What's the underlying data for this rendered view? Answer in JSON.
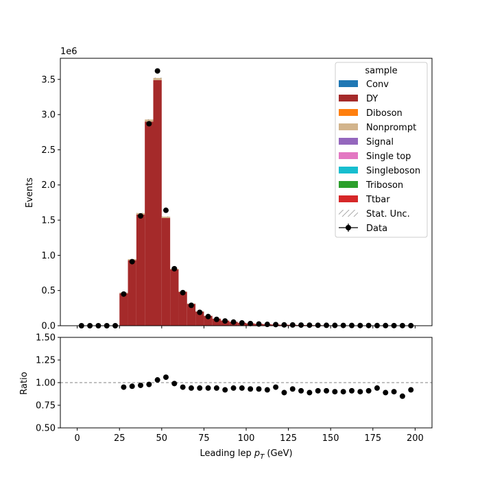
{
  "chart_data": {
    "type": "bar",
    "stacked": true,
    "main": {
      "ylabel": "Events",
      "offset_text": "1e6",
      "ylim": [
        0,
        3.8
      ],
      "yticks": [
        0.0,
        0.5,
        1.0,
        1.5,
        2.0,
        2.5,
        3.0,
        3.5
      ],
      "ytick_labels": [
        "0.0",
        "0.5",
        "1.0",
        "1.5",
        "2.0",
        "2.5",
        "3.0",
        "3.5"
      ]
    },
    "ratio": {
      "ylabel": "Ratio",
      "ylim": [
        0.5,
        1.5
      ],
      "yticks": [
        0.5,
        0.75,
        1.0,
        1.25,
        1.5
      ],
      "ytick_labels": [
        "0.50",
        "0.75",
        "1.00",
        "1.25",
        "1.50"
      ],
      "reference_line": 1.0,
      "values": [
        null,
        null,
        null,
        null,
        null,
        0.95,
        0.96,
        0.97,
        0.98,
        1.03,
        1.06,
        0.99,
        0.95,
        0.94,
        0.94,
        0.94,
        0.94,
        0.92,
        0.94,
        0.94,
        0.93,
        0.93,
        0.92,
        0.95,
        0.89,
        0.93,
        0.91,
        0.89,
        0.91,
        0.91,
        0.9,
        0.9,
        0.91,
        0.9,
        0.91,
        0.94,
        0.89,
        0.9,
        0.85,
        0.92
      ]
    },
    "xlabel": "Leading lep $p_T$ (GeV)",
    "xlabel_main": "Leading lep ",
    "xlabel_sub": "T",
    "xlabel_tail": " (GeV)",
    "xlabel_p": "p",
    "xlim": [
      -10,
      210
    ],
    "xticks": [
      0,
      25,
      50,
      75,
      100,
      125,
      150,
      175,
      200
    ],
    "xtick_labels": [
      "0",
      "25",
      "50",
      "75",
      "100",
      "125",
      "150",
      "175",
      "200"
    ],
    "bin_edges_start": 0,
    "bin_width": 5,
    "bin_centers": [
      2.5,
      7.5,
      12.5,
      17.5,
      22.5,
      27.5,
      32.5,
      37.5,
      42.5,
      47.5,
      52.5,
      57.5,
      62.5,
      67.5,
      72.5,
      77.5,
      82.5,
      87.5,
      92.5,
      97.5,
      102.5,
      107.5,
      112.5,
      117.5,
      122.5,
      127.5,
      132.5,
      137.5,
      142.5,
      147.5,
      152.5,
      157.5,
      162.5,
      167.5,
      172.5,
      177.5,
      182.5,
      187.5,
      192.5,
      197.5
    ],
    "series": [
      {
        "name": "Conv",
        "color": "#1f77b4",
        "values": [
          0,
          0,
          0,
          0,
          0,
          0,
          0,
          0,
          0,
          0,
          0,
          0,
          0,
          0,
          0,
          0,
          0,
          0,
          0,
          0,
          0,
          0,
          0,
          0,
          0,
          0,
          0,
          0,
          0,
          0,
          0,
          0,
          0,
          0,
          0,
          0,
          0,
          0,
          0,
          0
        ]
      },
      {
        "name": "DY",
        "color": "#a52a2a",
        "values": [
          0,
          0,
          0,
          0,
          0,
          0.46,
          0.93,
          1.58,
          2.9,
          3.49,
          1.53,
          0.8,
          0.48,
          0.31,
          0.2,
          0.14,
          0.1,
          0.073,
          0.055,
          0.042,
          0.033,
          0.026,
          0.021,
          0.017,
          0.014,
          0.012,
          0.01,
          0.0085,
          0.0072,
          0.006,
          0.0051,
          0.0044,
          0.0038,
          0.0033,
          0.0029,
          0.0025,
          0.0022,
          0.0019,
          0.0017,
          0.0015
        ]
      },
      {
        "name": "Diboson",
        "color": "#ff7f0e",
        "values": [
          0,
          0,
          0,
          0,
          0,
          0,
          0,
          0,
          0,
          0,
          0,
          0,
          0,
          0,
          0,
          0,
          0,
          0,
          0,
          0,
          0,
          0,
          0,
          0,
          0,
          0,
          0,
          0,
          0,
          0,
          0,
          0,
          0,
          0,
          0,
          0,
          0,
          0,
          0,
          0
        ]
      },
      {
        "name": "Nonprompt",
        "color": "#d2b48c",
        "values": [
          0,
          0,
          0,
          0,
          0,
          0.01,
          0.015,
          0.02,
          0.03,
          0.03,
          0.02,
          0.01,
          0.008,
          0.005,
          0.003,
          0.002,
          0.0015,
          0.001,
          0.001,
          0.0008,
          0.0006,
          0.0005,
          0.0004,
          0.0003,
          0.0003,
          0.0002,
          0.0002,
          0.0002,
          0.0001,
          0.0001,
          0.0001,
          0.0001,
          0.0001,
          0.0001,
          0.0001,
          0.0001,
          0.0001,
          0.0001,
          0.0001,
          0.0001
        ]
      },
      {
        "name": "Signal",
        "color": "#9467bd",
        "values": [
          0,
          0,
          0,
          0,
          0,
          0,
          0,
          0,
          0,
          0,
          0,
          0,
          0,
          0,
          0,
          0,
          0,
          0,
          0,
          0,
          0,
          0,
          0,
          0,
          0,
          0,
          0,
          0,
          0,
          0,
          0,
          0,
          0,
          0,
          0,
          0,
          0,
          0,
          0,
          0
        ]
      },
      {
        "name": "Single top",
        "color": "#e377c2",
        "values": [
          0,
          0,
          0,
          0,
          0,
          0,
          0,
          0,
          0,
          0,
          0,
          0,
          0,
          0,
          0,
          0,
          0,
          0,
          0,
          0,
          0,
          0,
          0,
          0,
          0,
          0,
          0,
          0,
          0,
          0,
          0,
          0,
          0,
          0,
          0,
          0,
          0,
          0,
          0,
          0
        ]
      },
      {
        "name": "Singleboson",
        "color": "#17becf",
        "values": [
          0,
          0,
          0,
          0,
          0,
          0,
          0,
          0,
          0,
          0,
          0,
          0,
          0,
          0,
          0,
          0,
          0,
          0,
          0,
          0,
          0,
          0,
          0,
          0,
          0,
          0,
          0,
          0,
          0,
          0,
          0,
          0,
          0,
          0,
          0,
          0,
          0,
          0,
          0,
          0
        ]
      },
      {
        "name": "Triboson",
        "color": "#2ca02c",
        "values": [
          0,
          0,
          0,
          0,
          0,
          0,
          0,
          0,
          0,
          0,
          0,
          0,
          0,
          0,
          0,
          0,
          0,
          0,
          0,
          0,
          0,
          0,
          0,
          0,
          0,
          0,
          0,
          0,
          0,
          0,
          0,
          0,
          0,
          0,
          0,
          0,
          0,
          0,
          0,
          0
        ]
      },
      {
        "name": "Ttbar",
        "color": "#d62728",
        "values": [
          0,
          0,
          0,
          0,
          0,
          0,
          0,
          0,
          0,
          0,
          0,
          0,
          0,
          0,
          0,
          0,
          0,
          0,
          0,
          0,
          0,
          0,
          0,
          0,
          0,
          0,
          0,
          0,
          0,
          0,
          0,
          0,
          0,
          0,
          0,
          0,
          0,
          0,
          0,
          0
        ]
      }
    ],
    "data": {
      "name": "Data",
      "values": [
        0,
        0,
        0,
        0,
        0,
        0.45,
        0.91,
        1.56,
        2.87,
        3.62,
        1.64,
        0.81,
        0.47,
        0.29,
        0.19,
        0.13,
        0.09,
        0.067,
        0.052,
        0.04,
        0.031,
        0.024,
        0.019,
        0.016,
        0.012,
        0.011,
        0.009,
        0.0076,
        0.0066,
        0.0055,
        0.0046,
        0.004,
        0.0035,
        0.003,
        0.0026,
        0.0024,
        0.002,
        0.0017,
        0.0014,
        0.0014
      ]
    },
    "legend": {
      "title": "sample",
      "placement": "upper right",
      "entries": [
        "Conv",
        "DY",
        "Diboson",
        "Nonprompt",
        "Signal",
        "Single top",
        "Singleboson",
        "Triboson",
        "Ttbar",
        "Stat. Unc.",
        "Data"
      ],
      "unc_label": "Stat. Unc.",
      "data_label": "Data"
    }
  }
}
